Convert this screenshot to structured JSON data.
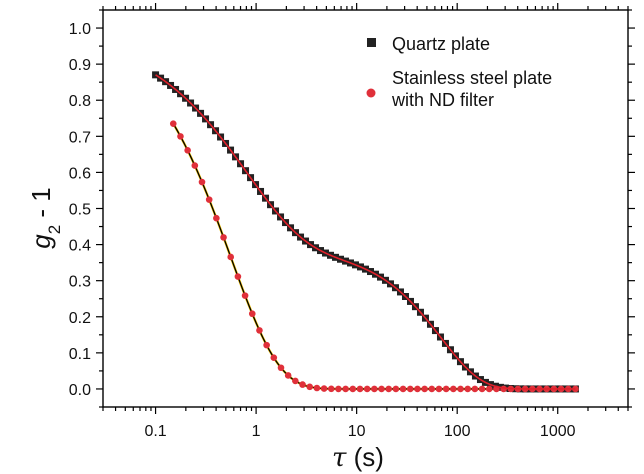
{
  "chart_data": {
    "type": "scatter",
    "title": "",
    "xlabel": "τ (s)",
    "ylabel": "g2 - 1",
    "xscale": "log",
    "xlim": [
      0.03,
      5000
    ],
    "ylim": [
      -0.05,
      1.05
    ],
    "x_ticks": [
      {
        "value": 0.1,
        "label": "0.1"
      },
      {
        "value": 1,
        "label": "1"
      },
      {
        "value": 10,
        "label": "10"
      },
      {
        "value": 100,
        "label": "100"
      },
      {
        "value": 1000,
        "label": "1000"
      }
    ],
    "y_ticks": [
      {
        "value": 0.0,
        "label": "0.0"
      },
      {
        "value": 0.1,
        "label": "0.1"
      },
      {
        "value": 0.2,
        "label": "0.2"
      },
      {
        "value": 0.3,
        "label": "0.3"
      },
      {
        "value": 0.4,
        "label": "0.4"
      },
      {
        "value": 0.5,
        "label": "0.5"
      },
      {
        "value": 0.6,
        "label": "0.6"
      },
      {
        "value": 0.7,
        "label": "0.7"
      },
      {
        "value": 0.8,
        "label": "0.8"
      },
      {
        "value": 0.9,
        "label": "0.9"
      },
      {
        "value": 1.0,
        "label": "1.0"
      }
    ],
    "grid": false,
    "legend_position": "top-right",
    "series": [
      {
        "name": "Quartz plate",
        "marker": "square",
        "color": "#222222",
        "fit_color": "#e0202a",
        "model": {
          "components": [
            {
              "amp": 0.6,
              "tau": 2.0,
              "beta": 0.75
            },
            {
              "amp": 0.385,
              "tau": 130,
              "beta": 1.1
            }
          ]
        },
        "points_per_decade": 20,
        "x_range": [
          0.1,
          1500
        ]
      },
      {
        "name": "Stainless steel plate with ND filter",
        "marker": "circle",
        "color": "#e0303a",
        "fit_color": "#000000",
        "fit2_color": "#f2c200",
        "model": {
          "components": [
            {
              "amp": 1.0,
              "tau": 1.2,
              "beta": 0.9
            }
          ]
        },
        "points_per_decade": 14,
        "x_range": [
          0.15,
          1500
        ]
      }
    ],
    "legend": [
      {
        "label": "Quartz plate",
        "marker": "square",
        "color": "#222222"
      },
      {
        "label_lines": [
          "Stainless steel plate",
          "with ND filter"
        ],
        "marker": "circle",
        "color": "#e0303a"
      }
    ]
  }
}
